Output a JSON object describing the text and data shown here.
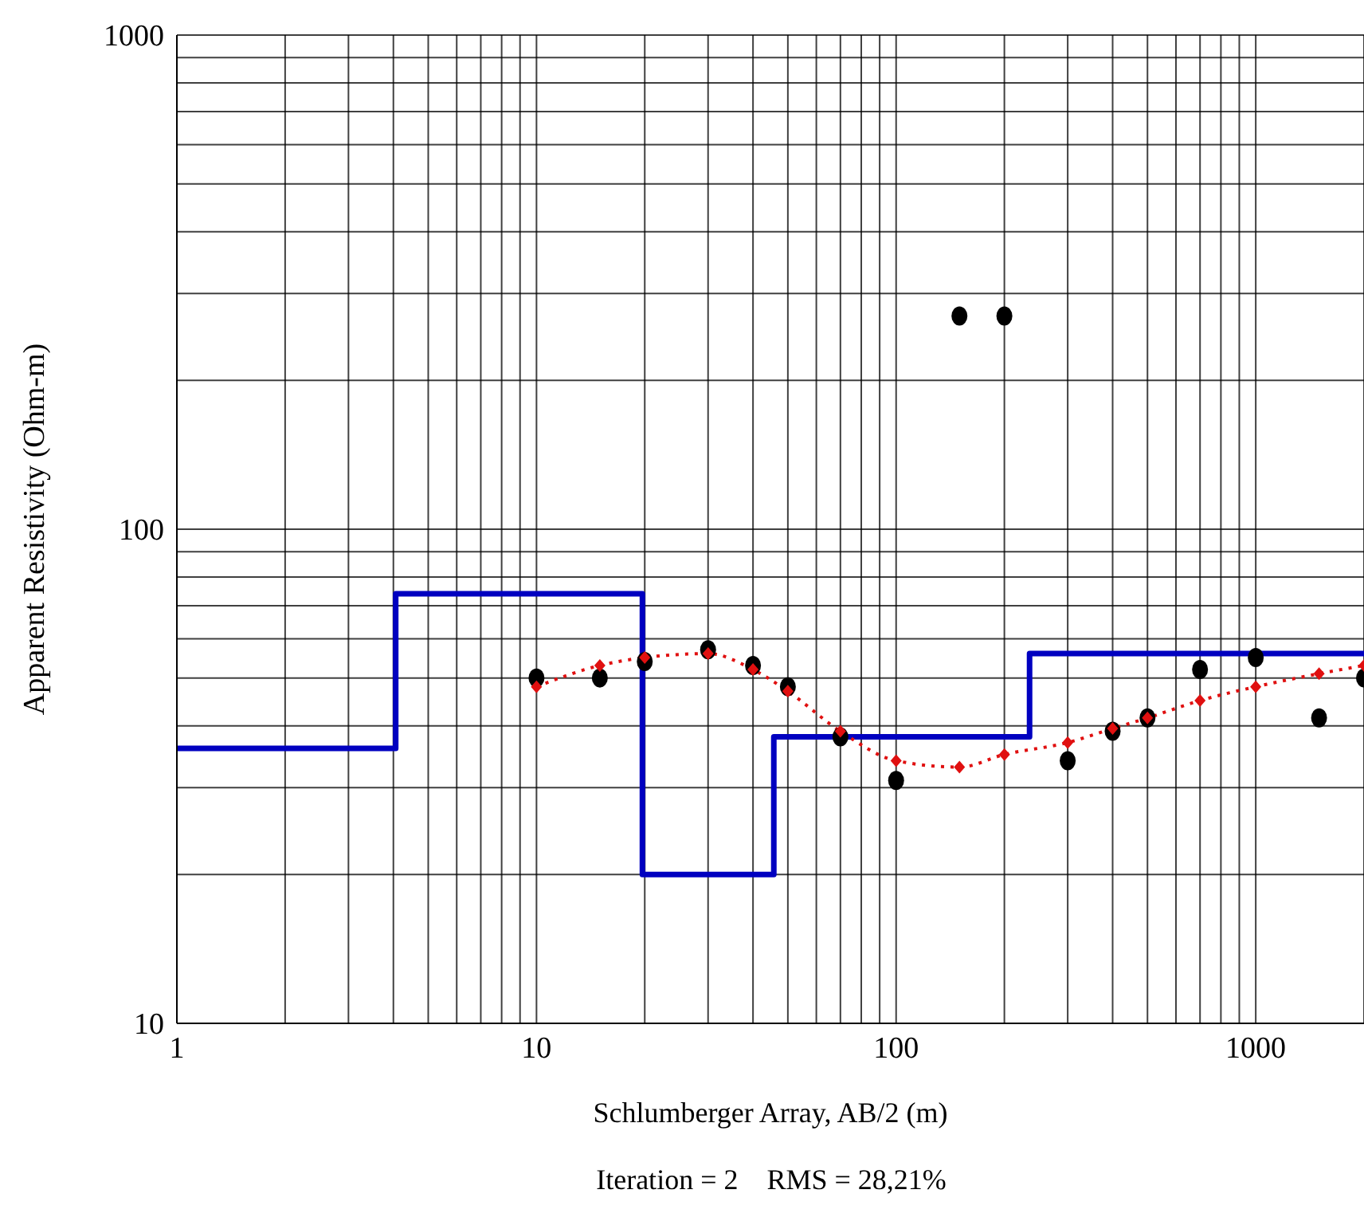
{
  "chart_data": {
    "type": "line",
    "xlabel": "Schlumberger Array, AB/2 (m)",
    "ylabel": "Apparent Resistivity (Ohm-m)",
    "annotations": [
      "Iteration = 2    RMS = 28,21%"
    ],
    "log": "xy",
    "grid": true,
    "xlim": [
      1,
      2000
    ],
    "ylim": [
      10,
      1000
    ],
    "xticks": [
      1,
      {
        "value": 2,
        "label": null
      },
      {
        "value": 3,
        "label": null
      },
      {
        "value": 4,
        "label": null
      },
      {
        "value": 5,
        "label": null
      },
      {
        "value": 6,
        "label": null
      },
      {
        "value": 7,
        "label": null
      },
      {
        "value": 8,
        "label": null
      },
      {
        "value": 9,
        "label": null
      },
      10,
      {
        "value": 20,
        "label": null
      },
      {
        "value": 30,
        "label": null
      },
      {
        "value": 40,
        "label": null
      },
      {
        "value": 50,
        "label": null
      },
      {
        "value": 60,
        "label": null
      },
      {
        "value": 70,
        "label": null
      },
      {
        "value": 80,
        "label": null
      },
      {
        "value": 90,
        "label": null
      },
      100,
      {
        "value": 200,
        "label": null
      },
      {
        "value": 300,
        "label": null
      },
      {
        "value": 400,
        "label": null
      },
      {
        "value": 500,
        "label": null
      },
      {
        "value": 600,
        "label": null
      },
      {
        "value": 700,
        "label": null
      },
      {
        "value": 800,
        "label": null
      },
      {
        "value": 900,
        "label": null
      },
      1000,
      {
        "value": 2000,
        "label": null
      }
    ],
    "yticks": [
      10,
      {
        "value": 20,
        "label": null
      },
      {
        "value": 30,
        "label": null
      },
      {
        "value": 40,
        "label": null
      },
      {
        "value": 50,
        "label": null
      },
      {
        "value": 60,
        "label": null
      },
      {
        "value": 70,
        "label": null
      },
      {
        "value": 80,
        "label": null
      },
      {
        "value": 90,
        "label": null
      },
      100,
      {
        "value": 200,
        "label": null
      },
      {
        "value": 300,
        "label": null
      },
      {
        "value": 400,
        "label": null
      },
      {
        "value": 500,
        "label": null
      },
      {
        "value": 600,
        "label": null
      },
      {
        "value": 700,
        "label": null
      },
      {
        "value": 800,
        "label": null
      },
      {
        "value": 900,
        "label": null
      },
      1000
    ],
    "series": [
      {
        "type": "step",
        "color": "#0000c0",
        "marker": "none",
        "line_style": "solid",
        "x": [
          1,
          4.06,
          19.7,
          45.7,
          235,
          2000
        ],
        "values": [
          36,
          74,
          20,
          38,
          56,
          56
        ]
      },
      {
        "color": "#e01010",
        "marker": "diamond",
        "line_style": "dotted",
        "x": [
          10,
          15,
          20,
          30,
          40,
          50,
          70,
          100,
          150,
          200,
          300,
          400,
          500,
          700,
          1000,
          1500,
          2000
        ],
        "values": [
          48,
          53,
          55,
          56,
          52,
          47,
          39,
          34,
          33,
          35,
          37,
          39.5,
          41.5,
          45,
          48,
          51,
          53
        ]
      },
      {
        "type": "scatter",
        "color": "#000000",
        "marker": "circle",
        "x": [
          10,
          15,
          20,
          30,
          40,
          50,
          70,
          100,
          150,
          200,
          300,
          400,
          500,
          700,
          1000,
          1500,
          2000
        ],
        "values": [
          50,
          50,
          54,
          57,
          53,
          48,
          38,
          31,
          270,
          270,
          34,
          39,
          41.5,
          52,
          55,
          41.5,
          50
        ]
      }
    ]
  }
}
